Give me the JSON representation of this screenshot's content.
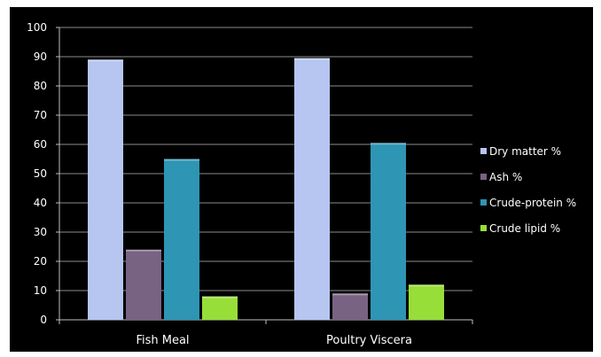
{
  "chart_data": {
    "type": "bar",
    "categories": [
      "Fish Meal",
      "Poultry Viscera"
    ],
    "series": [
      {
        "name": "Dry matter  %",
        "values": [
          89,
          89.5
        ],
        "color": "#b7c6f0"
      },
      {
        "name": "Ash  %",
        "values": [
          24,
          9
        ],
        "color": "#786383"
      },
      {
        "name": "Crude-protein  %",
        "values": [
          55,
          60.5
        ],
        "color": "#2e95b4"
      },
      {
        "name": "Crude lipid  %",
        "values": [
          8,
          12
        ],
        "color": "#98de39"
      }
    ],
    "ylim": [
      0,
      100
    ],
    "yticks": [
      0,
      10,
      20,
      30,
      40,
      50,
      60,
      70,
      80,
      90,
      100
    ],
    "grid": true,
    "legend_position": "right",
    "background": "#000000"
  }
}
